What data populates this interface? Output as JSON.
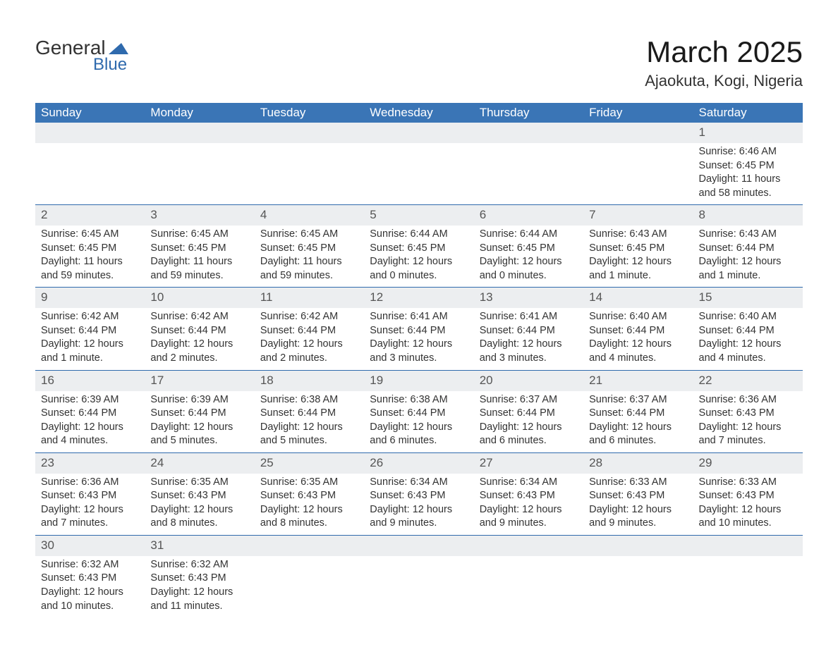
{
  "logo": {
    "word1": "General",
    "word2": "Blue",
    "accent_color": "#2f6aad",
    "text_color": "#333333"
  },
  "header": {
    "month_title": "March 2025",
    "location": "Ajaokuta, Kogi, Nigeria"
  },
  "colors": {
    "header_bg": "#3a75b6",
    "header_text": "#ffffff",
    "row_separator": "#2f6aad",
    "daynum_bg": "#eceef0",
    "body_text": "#333333",
    "page_bg": "#ffffff"
  },
  "typography": {
    "title_fontsize": 42,
    "location_fontsize": 22,
    "dayheader_fontsize": 17,
    "daynum_fontsize": 17,
    "body_fontsize": 14.5,
    "font_family": "Arial, Helvetica, sans-serif"
  },
  "calendar": {
    "day_headers": [
      "Sunday",
      "Monday",
      "Tuesday",
      "Wednesday",
      "Thursday",
      "Friday",
      "Saturday"
    ],
    "weeks": [
      [
        null,
        null,
        null,
        null,
        null,
        null,
        {
          "num": "1",
          "sunrise": "Sunrise: 6:46 AM",
          "sunset": "Sunset: 6:45 PM",
          "daylight1": "Daylight: 11 hours",
          "daylight2": "and 58 minutes."
        }
      ],
      [
        {
          "num": "2",
          "sunrise": "Sunrise: 6:45 AM",
          "sunset": "Sunset: 6:45 PM",
          "daylight1": "Daylight: 11 hours",
          "daylight2": "and 59 minutes."
        },
        {
          "num": "3",
          "sunrise": "Sunrise: 6:45 AM",
          "sunset": "Sunset: 6:45 PM",
          "daylight1": "Daylight: 11 hours",
          "daylight2": "and 59 minutes."
        },
        {
          "num": "4",
          "sunrise": "Sunrise: 6:45 AM",
          "sunset": "Sunset: 6:45 PM",
          "daylight1": "Daylight: 11 hours",
          "daylight2": "and 59 minutes."
        },
        {
          "num": "5",
          "sunrise": "Sunrise: 6:44 AM",
          "sunset": "Sunset: 6:45 PM",
          "daylight1": "Daylight: 12 hours",
          "daylight2": "and 0 minutes."
        },
        {
          "num": "6",
          "sunrise": "Sunrise: 6:44 AM",
          "sunset": "Sunset: 6:45 PM",
          "daylight1": "Daylight: 12 hours",
          "daylight2": "and 0 minutes."
        },
        {
          "num": "7",
          "sunrise": "Sunrise: 6:43 AM",
          "sunset": "Sunset: 6:45 PM",
          "daylight1": "Daylight: 12 hours",
          "daylight2": "and 1 minute."
        },
        {
          "num": "8",
          "sunrise": "Sunrise: 6:43 AM",
          "sunset": "Sunset: 6:44 PM",
          "daylight1": "Daylight: 12 hours",
          "daylight2": "and 1 minute."
        }
      ],
      [
        {
          "num": "9",
          "sunrise": "Sunrise: 6:42 AM",
          "sunset": "Sunset: 6:44 PM",
          "daylight1": "Daylight: 12 hours",
          "daylight2": "and 1 minute."
        },
        {
          "num": "10",
          "sunrise": "Sunrise: 6:42 AM",
          "sunset": "Sunset: 6:44 PM",
          "daylight1": "Daylight: 12 hours",
          "daylight2": "and 2 minutes."
        },
        {
          "num": "11",
          "sunrise": "Sunrise: 6:42 AM",
          "sunset": "Sunset: 6:44 PM",
          "daylight1": "Daylight: 12 hours",
          "daylight2": "and 2 minutes."
        },
        {
          "num": "12",
          "sunrise": "Sunrise: 6:41 AM",
          "sunset": "Sunset: 6:44 PM",
          "daylight1": "Daylight: 12 hours",
          "daylight2": "and 3 minutes."
        },
        {
          "num": "13",
          "sunrise": "Sunrise: 6:41 AM",
          "sunset": "Sunset: 6:44 PM",
          "daylight1": "Daylight: 12 hours",
          "daylight2": "and 3 minutes."
        },
        {
          "num": "14",
          "sunrise": "Sunrise: 6:40 AM",
          "sunset": "Sunset: 6:44 PM",
          "daylight1": "Daylight: 12 hours",
          "daylight2": "and 4 minutes."
        },
        {
          "num": "15",
          "sunrise": "Sunrise: 6:40 AM",
          "sunset": "Sunset: 6:44 PM",
          "daylight1": "Daylight: 12 hours",
          "daylight2": "and 4 minutes."
        }
      ],
      [
        {
          "num": "16",
          "sunrise": "Sunrise: 6:39 AM",
          "sunset": "Sunset: 6:44 PM",
          "daylight1": "Daylight: 12 hours",
          "daylight2": "and 4 minutes."
        },
        {
          "num": "17",
          "sunrise": "Sunrise: 6:39 AM",
          "sunset": "Sunset: 6:44 PM",
          "daylight1": "Daylight: 12 hours",
          "daylight2": "and 5 minutes."
        },
        {
          "num": "18",
          "sunrise": "Sunrise: 6:38 AM",
          "sunset": "Sunset: 6:44 PM",
          "daylight1": "Daylight: 12 hours",
          "daylight2": "and 5 minutes."
        },
        {
          "num": "19",
          "sunrise": "Sunrise: 6:38 AM",
          "sunset": "Sunset: 6:44 PM",
          "daylight1": "Daylight: 12 hours",
          "daylight2": "and 6 minutes."
        },
        {
          "num": "20",
          "sunrise": "Sunrise: 6:37 AM",
          "sunset": "Sunset: 6:44 PM",
          "daylight1": "Daylight: 12 hours",
          "daylight2": "and 6 minutes."
        },
        {
          "num": "21",
          "sunrise": "Sunrise: 6:37 AM",
          "sunset": "Sunset: 6:44 PM",
          "daylight1": "Daylight: 12 hours",
          "daylight2": "and 6 minutes."
        },
        {
          "num": "22",
          "sunrise": "Sunrise: 6:36 AM",
          "sunset": "Sunset: 6:43 PM",
          "daylight1": "Daylight: 12 hours",
          "daylight2": "and 7 minutes."
        }
      ],
      [
        {
          "num": "23",
          "sunrise": "Sunrise: 6:36 AM",
          "sunset": "Sunset: 6:43 PM",
          "daylight1": "Daylight: 12 hours",
          "daylight2": "and 7 minutes."
        },
        {
          "num": "24",
          "sunrise": "Sunrise: 6:35 AM",
          "sunset": "Sunset: 6:43 PM",
          "daylight1": "Daylight: 12 hours",
          "daylight2": "and 8 minutes."
        },
        {
          "num": "25",
          "sunrise": "Sunrise: 6:35 AM",
          "sunset": "Sunset: 6:43 PM",
          "daylight1": "Daylight: 12 hours",
          "daylight2": "and 8 minutes."
        },
        {
          "num": "26",
          "sunrise": "Sunrise: 6:34 AM",
          "sunset": "Sunset: 6:43 PM",
          "daylight1": "Daylight: 12 hours",
          "daylight2": "and 9 minutes."
        },
        {
          "num": "27",
          "sunrise": "Sunrise: 6:34 AM",
          "sunset": "Sunset: 6:43 PM",
          "daylight1": "Daylight: 12 hours",
          "daylight2": "and 9 minutes."
        },
        {
          "num": "28",
          "sunrise": "Sunrise: 6:33 AM",
          "sunset": "Sunset: 6:43 PM",
          "daylight1": "Daylight: 12 hours",
          "daylight2": "and 9 minutes."
        },
        {
          "num": "29",
          "sunrise": "Sunrise: 6:33 AM",
          "sunset": "Sunset: 6:43 PM",
          "daylight1": "Daylight: 12 hours",
          "daylight2": "and 10 minutes."
        }
      ],
      [
        {
          "num": "30",
          "sunrise": "Sunrise: 6:32 AM",
          "sunset": "Sunset: 6:43 PM",
          "daylight1": "Daylight: 12 hours",
          "daylight2": "and 10 minutes."
        },
        {
          "num": "31",
          "sunrise": "Sunrise: 6:32 AM",
          "sunset": "Sunset: 6:43 PM",
          "daylight1": "Daylight: 12 hours",
          "daylight2": "and 11 minutes."
        },
        null,
        null,
        null,
        null,
        null
      ]
    ]
  }
}
